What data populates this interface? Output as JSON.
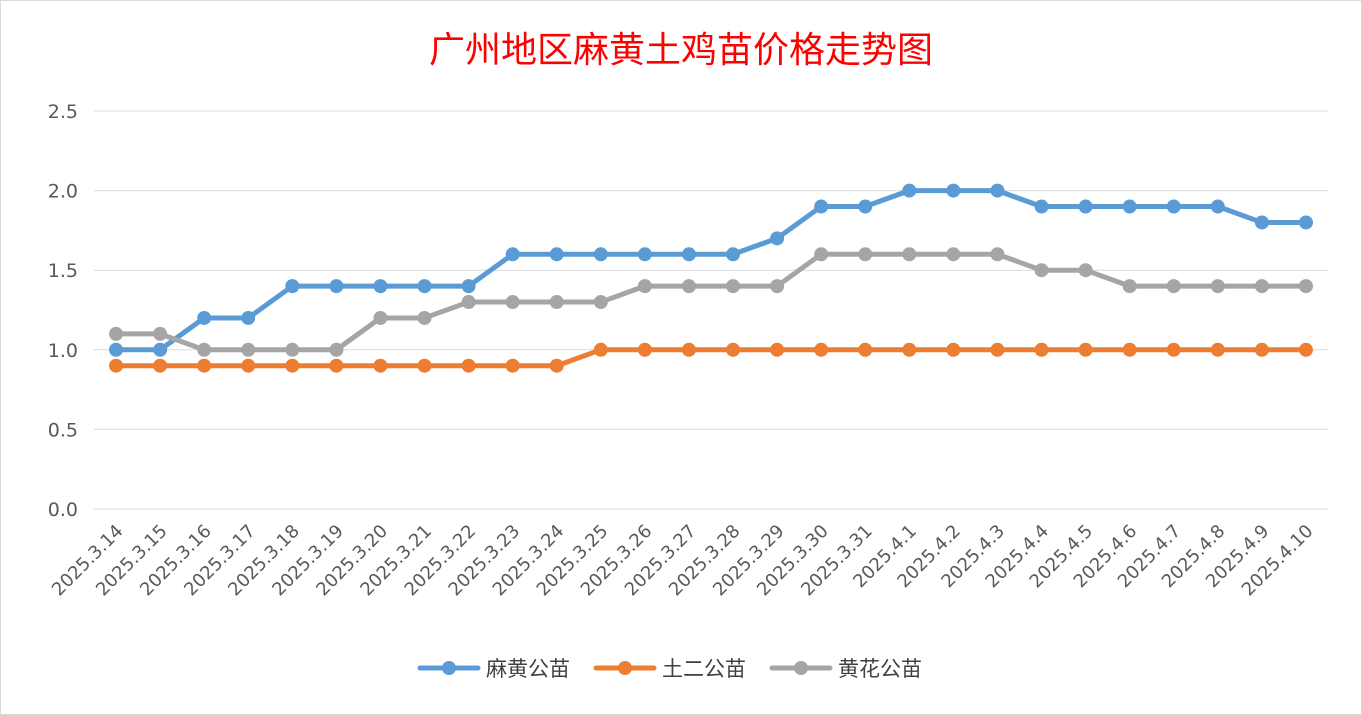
{
  "chart_data": {
    "type": "line",
    "title": "广州地区麻黄土鸡苗价格走势图",
    "categories": [
      "2025.3.14",
      "2025.3.15",
      "2025.3.16",
      "2025.3.17",
      "2025.3.18",
      "2025.3.19",
      "2025.3.20",
      "2025.3.21",
      "2025.3.22",
      "2025.3.23",
      "2025.3.24",
      "2025.3.25",
      "2025.3.26",
      "2025.3.27",
      "2025.3.28",
      "2025.3.29",
      "2025.3.30",
      "2025.3.31",
      "2025.4.1",
      "2025.4.2",
      "2025.4.3",
      "2025.4.4",
      "2025.4.5",
      "2025.4.6",
      "2025.4.7",
      "2025.4.8",
      "2025.4.9",
      "2025.4.10"
    ],
    "series": [
      {
        "name": "麻黄公苗",
        "color": "#5b9bd5",
        "values": [
          1.0,
          1.0,
          1.2,
          1.2,
          1.4,
          1.4,
          1.4,
          1.4,
          1.4,
          1.6,
          1.6,
          1.6,
          1.6,
          1.6,
          1.6,
          1.7,
          1.9,
          1.9,
          2.0,
          2.0,
          2.0,
          1.9,
          1.9,
          1.9,
          1.9,
          1.9,
          1.8,
          1.8
        ]
      },
      {
        "name": "土二公苗",
        "color": "#ed7d31",
        "values": [
          0.9,
          0.9,
          0.9,
          0.9,
          0.9,
          0.9,
          0.9,
          0.9,
          0.9,
          0.9,
          0.9,
          1.0,
          1.0,
          1.0,
          1.0,
          1.0,
          1.0,
          1.0,
          1.0,
          1.0,
          1.0,
          1.0,
          1.0,
          1.0,
          1.0,
          1.0,
          1.0,
          1.0
        ]
      },
      {
        "name": "黄花公苗",
        "color": "#a5a5a5",
        "values": [
          1.1,
          1.1,
          1.0,
          1.0,
          1.0,
          1.0,
          1.2,
          1.2,
          1.3,
          1.3,
          1.3,
          1.3,
          1.4,
          1.4,
          1.4,
          1.4,
          1.6,
          1.6,
          1.6,
          1.6,
          1.6,
          1.5,
          1.5,
          1.4,
          1.4,
          1.4,
          1.4,
          1.4
        ]
      }
    ],
    "yticks": [
      "0.0",
      "0.5",
      "1.0",
      "1.5",
      "2.0",
      "2.5"
    ],
    "ylim": [
      0,
      2.5
    ],
    "grid": true,
    "legend_position": "bottom"
  }
}
